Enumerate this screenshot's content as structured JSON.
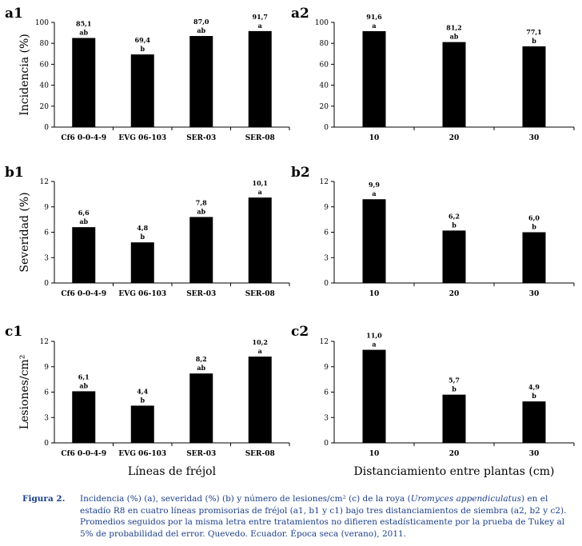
{
  "chart_data": [
    {
      "panel": "a1",
      "type": "bar",
      "ylabel": "Incidencia (%)",
      "ylim": [
        0,
        100
      ],
      "yticks": [
        0,
        20,
        40,
        60,
        80,
        100
      ],
      "categories": [
        "Cf6 0-0-4-9",
        "EVG 06-103",
        "SER-03",
        "SER-08"
      ],
      "values": [
        85.1,
        69.4,
        87.0,
        91.7
      ],
      "value_labels": [
        "85,1",
        "69,4",
        "87,0",
        "91,7"
      ],
      "letters": [
        "ab",
        "b",
        "ab",
        "a"
      ],
      "color": "#000000"
    },
    {
      "panel": "a2",
      "type": "bar",
      "ylabel": "",
      "ylim": [
        0,
        100
      ],
      "yticks": [
        0,
        20,
        40,
        60,
        80,
        100
      ],
      "categories": [
        "10",
        "20",
        "30"
      ],
      "values": [
        91.6,
        81.2,
        77.1
      ],
      "value_labels": [
        "91,6",
        "81,2",
        "77,1"
      ],
      "letters": [
        "a",
        "ab",
        "b"
      ],
      "color": "#000000"
    },
    {
      "panel": "b1",
      "type": "bar",
      "ylabel": "Severidad (%)",
      "ylim": [
        0,
        12
      ],
      "yticks": [
        0,
        3,
        6,
        9,
        12
      ],
      "categories": [
        "Cf6 0-0-4-9",
        "EVG 06-103",
        "SER-03",
        "SER-08"
      ],
      "values": [
        6.6,
        4.8,
        7.8,
        10.1
      ],
      "value_labels": [
        "6,6",
        "4,8",
        "7,8",
        "10,1"
      ],
      "letters": [
        "ab",
        "b",
        "ab",
        "a"
      ],
      "color": "#000000"
    },
    {
      "panel": "b2",
      "type": "bar",
      "ylabel": "",
      "ylim": [
        0,
        12
      ],
      "yticks": [
        0,
        3,
        6,
        9,
        12
      ],
      "categories": [
        "10",
        "20",
        "30"
      ],
      "values": [
        9.9,
        6.2,
        6.0
      ],
      "value_labels": [
        "9,9",
        "6,2",
        "6,0"
      ],
      "letters": [
        "a",
        "b",
        "b"
      ],
      "color": "#000000"
    },
    {
      "panel": "c1",
      "type": "bar",
      "ylabel": "Lesiones/cm²",
      "ylim": [
        0,
        12
      ],
      "yticks": [
        0,
        3,
        6,
        9,
        12
      ],
      "categories": [
        "Cf6 0-0-4-9",
        "EVG 06-103",
        "SER-03",
        "SER-08"
      ],
      "values": [
        6.1,
        4.4,
        8.2,
        10.2
      ],
      "value_labels": [
        "6,1",
        "4,4",
        "8,2",
        "10,2"
      ],
      "letters": [
        "ab",
        "b",
        "ab",
        "a"
      ],
      "xlabel": "Líneas de fréjol",
      "color": "#000000"
    },
    {
      "panel": "c2",
      "type": "bar",
      "ylabel": "",
      "ylim": [
        0,
        12
      ],
      "yticks": [
        0,
        3,
        6,
        9,
        12
      ],
      "categories": [
        "10",
        "20",
        "30"
      ],
      "values": [
        11.0,
        5.7,
        4.9
      ],
      "value_labels": [
        "11,0",
        "5,7",
        "4,9"
      ],
      "letters": [
        "a",
        "b",
        "b"
      ],
      "xlabel": "Distanciamiento entre plantas (cm)",
      "color": "#000000"
    }
  ],
  "caption": {
    "label": "Figura 2.",
    "text_before_italic": "Incidencia (%) (a), severidad (%) (b) y número de lesiones/cm² (c) de la roya (",
    "italic": "Uromyces appendiculatus",
    "text_after_italic": ") en el estadío R8 en cuatro líneas promisorias de fréjol (a1, b1 y c1) bajo tres distanciamientos de siembra  (a2, b2 y c2). Promedios seguidos por la misma letra entre tratamientos no difieren estadísticamente por la prueba de Tukey al 5% de probabilidad del error. Quevedo. Ecuador. Época seca (verano), 2011."
  }
}
